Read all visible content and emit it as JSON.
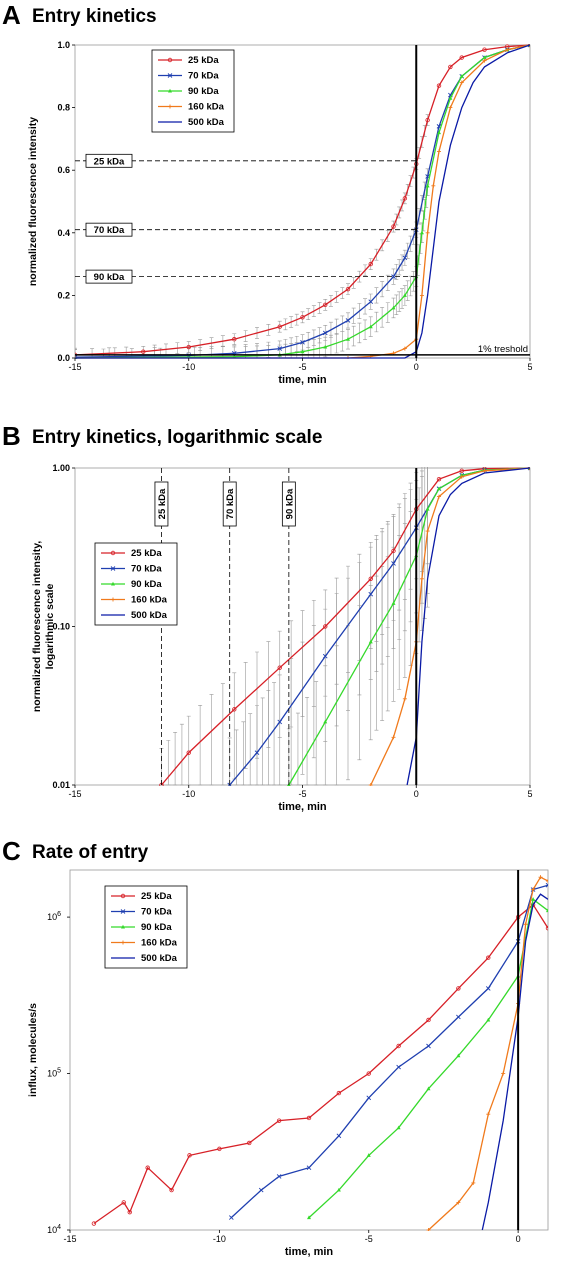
{
  "panels": [
    {
      "letter": "A",
      "title": "Entry kinetics"
    },
    {
      "letter": "B",
      "title": "Entry kinetics, logarithmic scale"
    },
    {
      "letter": "C",
      "title": "Rate of entry"
    }
  ],
  "legend_names": [
    "25 kDa",
    "70 kDa",
    "90 kDa",
    "160 kDa",
    "500 kDa"
  ],
  "colors": [
    "#d72027",
    "#1f3fb0",
    "#35d92b",
    "#f07a1c",
    "#0a1aa6"
  ],
  "chart_data": [
    {
      "id": "A",
      "type": "line",
      "title": "Entry kinetics",
      "xlabel": "time, min",
      "ylabel": "normalized fluorescence intensity",
      "xlim": [
        -15,
        5
      ],
      "ylim": [
        0,
        1
      ],
      "xticks": [
        -15,
        -10,
        -5,
        0,
        5
      ],
      "xtick_labels": [
        "-15",
        "-10",
        "-5",
        "0",
        "5"
      ],
      "yticks": [
        0,
        0.2,
        0.4,
        0.6,
        0.8,
        1.0
      ],
      "ytick_labels": [
        "0.0",
        "0.2",
        "0.4",
        "0.6",
        "0.8",
        "1.0"
      ],
      "legend_position": "top-left",
      "reference_lines": [
        {
          "label": "25 kDa",
          "y": 0.63
        },
        {
          "label": "70 kDa",
          "y": 0.41
        },
        {
          "label": "90 kDa",
          "y": 0.26
        }
      ],
      "threshold": {
        "label": "1% treshold",
        "y": 0.01
      },
      "series": [
        {
          "name": "25 kDa",
          "x": [
            -15,
            -12,
            -10,
            -8,
            -6,
            -5,
            -4,
            -3,
            -2,
            -1,
            -0.5,
            0,
            0.5,
            1,
            1.5,
            2,
            3,
            4,
            5
          ],
          "y": [
            0.01,
            0.02,
            0.035,
            0.06,
            0.1,
            0.13,
            0.17,
            0.22,
            0.3,
            0.42,
            0.51,
            0.62,
            0.76,
            0.87,
            0.93,
            0.96,
            0.985,
            0.995,
            1.0
          ]
        },
        {
          "name": "70 kDa",
          "x": [
            -15,
            -10,
            -8,
            -6,
            -5,
            -4,
            -3,
            -2,
            -1,
            -0.5,
            0,
            0.5,
            1,
            1.5,
            2,
            3,
            4,
            5
          ],
          "y": [
            0.003,
            0.008,
            0.015,
            0.03,
            0.05,
            0.08,
            0.12,
            0.18,
            0.26,
            0.32,
            0.41,
            0.58,
            0.74,
            0.84,
            0.9,
            0.96,
            0.985,
            1.0
          ]
        },
        {
          "name": "90 kDa",
          "x": [
            -15,
            -8,
            -6,
            -5,
            -4,
            -3,
            -2,
            -1,
            -0.5,
            0,
            0.25,
            0.5,
            1,
            1.5,
            2,
            3,
            4,
            5
          ],
          "y": [
            0.0,
            0.004,
            0.01,
            0.02,
            0.035,
            0.06,
            0.1,
            0.16,
            0.2,
            0.26,
            0.4,
            0.55,
            0.72,
            0.83,
            0.9,
            0.96,
            0.985,
            1.0
          ]
        },
        {
          "name": "160 kDa",
          "x": [
            -15,
            -3,
            -2,
            -1,
            -0.5,
            0,
            0.25,
            0.5,
            0.75,
            1,
            1.5,
            2,
            3,
            4,
            5
          ],
          "y": [
            0.0,
            0.0,
            0.005,
            0.015,
            0.03,
            0.06,
            0.2,
            0.4,
            0.55,
            0.66,
            0.8,
            0.88,
            0.95,
            0.985,
            1.0
          ]
        },
        {
          "name": "500 kDa",
          "x": [
            -15,
            -0.5,
            0,
            0.25,
            0.5,
            0.75,
            1,
            1.5,
            2,
            2.5,
            3,
            4,
            5
          ],
          "y": [
            0.0,
            0.0,
            0.02,
            0.08,
            0.2,
            0.35,
            0.5,
            0.68,
            0.8,
            0.88,
            0.93,
            0.975,
            1.0
          ]
        }
      ]
    },
    {
      "id": "B",
      "type": "line",
      "title": "Entry kinetics, logarithmic scale",
      "xlabel": "time, min",
      "ylabel": "normalized fluorescence intensity,",
      "ylabel2": "logarithmic scale",
      "xlim": [
        -15,
        5
      ],
      "ylim": [
        0.01,
        1
      ],
      "yscale": "log",
      "xticks": [
        -15,
        -10,
        -5,
        0,
        5
      ],
      "xtick_labels": [
        "-15",
        "-10",
        "-5",
        "0",
        "5"
      ],
      "yticks": [
        0.01,
        0.1,
        1
      ],
      "ytick_labels": [
        "0.01",
        "0.10",
        "1.00"
      ],
      "legend_position": "middle-left",
      "reference_lines": [
        {
          "label": "25 kDa",
          "x": -11.2
        },
        {
          "label": "70 kDa",
          "x": -8.2
        },
        {
          "label": "90 kDa",
          "x": -5.6
        }
      ],
      "series": [
        {
          "name": "25 kDa",
          "x": [
            -11.2,
            -10,
            -8,
            -6,
            -4,
            -2,
            -1,
            0,
            1,
            2,
            3,
            5
          ],
          "y": [
            0.01,
            0.016,
            0.03,
            0.055,
            0.1,
            0.2,
            0.3,
            0.55,
            0.85,
            0.96,
            0.99,
            1.0
          ]
        },
        {
          "name": "70 kDa",
          "x": [
            -8.2,
            -7,
            -6,
            -4,
            -2,
            -1,
            0,
            1,
            2,
            3,
            5
          ],
          "y": [
            0.01,
            0.016,
            0.025,
            0.065,
            0.16,
            0.25,
            0.42,
            0.74,
            0.9,
            0.97,
            1.0
          ]
        },
        {
          "name": "90 kDa",
          "x": [
            -5.6,
            -4,
            -2,
            -1,
            0,
            0.5,
            1,
            2,
            3,
            5
          ],
          "y": [
            0.01,
            0.025,
            0.08,
            0.14,
            0.28,
            0.55,
            0.74,
            0.9,
            0.97,
            1.0
          ]
        },
        {
          "name": "160 kDa",
          "x": [
            -2,
            -1,
            -0.5,
            0,
            0.25,
            0.5,
            1,
            2,
            3,
            5
          ],
          "y": [
            0.01,
            0.02,
            0.035,
            0.08,
            0.2,
            0.4,
            0.66,
            0.88,
            0.96,
            1.0
          ]
        },
        {
          "name": "500 kDa",
          "x": [
            -0.4,
            0,
            0.25,
            0.5,
            1,
            1.5,
            2,
            3,
            5
          ],
          "y": [
            0.01,
            0.02,
            0.08,
            0.2,
            0.5,
            0.68,
            0.8,
            0.93,
            1.0
          ]
        }
      ]
    },
    {
      "id": "C",
      "type": "line",
      "title": "Rate of entry",
      "xlabel": "time, min",
      "ylabel": "influx, molecules/s",
      "xlim": [
        -15,
        1
      ],
      "ylim": [
        10000,
        2000000
      ],
      "yscale": "log",
      "xticks": [
        -15,
        -10,
        -5,
        0
      ],
      "xtick_labels": [
        "-15",
        "-10",
        "-5",
        "0"
      ],
      "yticks": [
        10000,
        100000,
        1000000
      ],
      "legend_position": "top-left",
      "series": [
        {
          "name": "25 kDa",
          "x": [
            -14.2,
            -13.2,
            -13,
            -12.4,
            -11.6,
            -11,
            -10,
            -9,
            -8,
            -7,
            -6,
            -5,
            -4,
            -3,
            -2,
            -1,
            0,
            0.5,
            1
          ],
          "y": [
            11000,
            15000,
            13000,
            25000,
            18000,
            30000,
            33000,
            36000,
            50000,
            52000,
            75000,
            100000,
            150000,
            220000,
            350000,
            550000,
            1000000,
            1200000,
            850000
          ]
        },
        {
          "name": "70 kDa",
          "x": [
            -9.6,
            -8.6,
            -8,
            -7,
            -6,
            -5,
            -4,
            -3,
            -2,
            -1,
            0,
            0.5,
            1
          ],
          "y": [
            12000,
            18000,
            22000,
            25000,
            40000,
            70000,
            110000,
            150000,
            230000,
            350000,
            700000,
            1500000,
            1600000
          ]
        },
        {
          "name": "90 kDa",
          "x": [
            -7,
            -6,
            -5,
            -4,
            -3,
            -2,
            -1,
            0,
            0.5,
            1
          ],
          "y": [
            12000,
            18000,
            30000,
            45000,
            80000,
            130000,
            220000,
            420000,
            1300000,
            1100000
          ]
        },
        {
          "name": "160 kDa",
          "x": [
            -3,
            -2,
            -1.5,
            -1,
            -0.5,
            0,
            0.25,
            0.5,
            0.75,
            1
          ],
          "y": [
            10000,
            15000,
            20000,
            55000,
            100000,
            280000,
            900000,
            1500000,
            1800000,
            1700000
          ]
        },
        {
          "name": "500 kDa",
          "x": [
            -1.2,
            -1,
            -0.5,
            0,
            0.25,
            0.5,
            0.75,
            1
          ],
          "y": [
            10000,
            15000,
            50000,
            230000,
            700000,
            1200000,
            1400000,
            1300000
          ]
        }
      ]
    }
  ]
}
